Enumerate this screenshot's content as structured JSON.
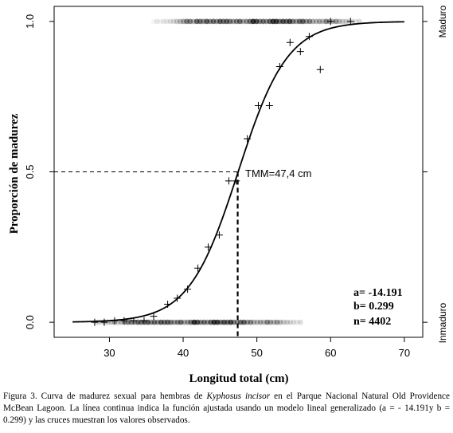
{
  "chart_data": {
    "type": "scatter",
    "xlabel": "Longitud total (cm)",
    "ylabel": "Proporción de madurez",
    "xlim": [
      22.5,
      72.5
    ],
    "ylim": [
      -0.05,
      1.05
    ],
    "xticks": [
      30,
      40,
      50,
      60,
      70
    ],
    "yticks": [
      0.0,
      0.5,
      1.0
    ],
    "ytick_labels": [
      "0.0",
      "0.5",
      "1.0"
    ],
    "right_labels": [
      "Maduro",
      "Inmaduro"
    ],
    "grid": false,
    "logistic": {
      "a": -14.191,
      "b": 0.299,
      "x_range": [
        25,
        70
      ]
    },
    "threshold": {
      "label": "TMM=47,4 cm",
      "x": 47.4,
      "y": 0.5
    },
    "stats": [
      "a= -14.191",
      "b= 0.299",
      "n= 4402"
    ],
    "observed": {
      "x": [
        28,
        29.3,
        30.7,
        32,
        33.3,
        34.7,
        36,
        37.9,
        39.2,
        40.6,
        42,
        43.4,
        44.9,
        46.2,
        47.2,
        48.7,
        50.2,
        51.7,
        53.1,
        54.5,
        55.9,
        57.1,
        58.6,
        60,
        62.7
      ],
      "y": [
        0.0,
        0.0,
        0.005,
        0.005,
        0.005,
        0.005,
        0.02,
        0.06,
        0.08,
        0.11,
        0.18,
        0.25,
        0.29,
        0.47,
        0.47,
        0.61,
        0.72,
        0.72,
        0.85,
        0.93,
        0.9,
        0.95,
        0.84,
        1.0,
        1.0
      ]
    },
    "rug_bottom": {
      "x_range": [
        28,
        56
      ]
    },
    "rug_top": {
      "x_range": [
        36,
        64
      ]
    }
  },
  "caption": {
    "part1": "Figura 3. Curva de madurez sexual para hembras de ",
    "species": "Kyphosus incisor",
    "part2": " en el Parque Nacional Natural Old Providence McBean Lagoon. La línea continua indica la función ajustada usando un modelo lineal generalizado (a = - 14.191y b = 0.299) y las cruces muestran los valores observados."
  }
}
